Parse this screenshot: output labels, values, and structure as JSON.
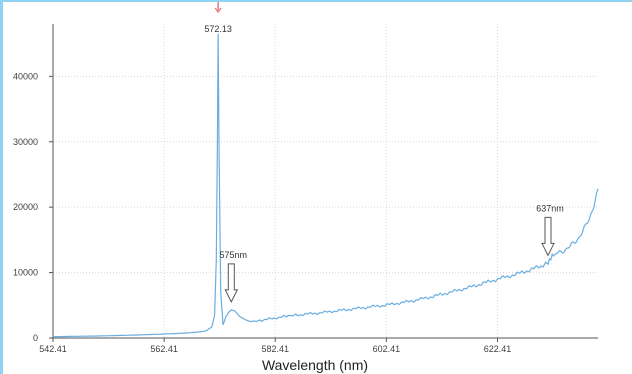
{
  "chart_data": {
    "type": "line",
    "xlabel": "Wavelength (nm)",
    "ylabel": "",
    "xlim": [
      542.41,
      640.5
    ],
    "ylim": [
      0,
      48000
    ],
    "grid": true,
    "x_ticks": [
      542.41,
      562.41,
      582.41,
      602.41,
      622.41
    ],
    "x_tick_labels": [
      "542.41",
      "562.41",
      "582.41",
      "602.41",
      "622.41"
    ],
    "y_ticks": [
      0,
      10000,
      20000,
      30000,
      40000
    ],
    "y_tick_labels": [
      "0",
      "10000",
      "20000",
      "30000",
      "40000"
    ],
    "line_color": "#6aaee0",
    "peak_marker_color": "#e07a7a",
    "arrow_color": "#555555",
    "series": [
      {
        "x": [
          542.41,
          546,
          550,
          554,
          558,
          562,
          565,
          567,
          569,
          570,
          571,
          571.5,
          571.8,
          572.0,
          572.13,
          572.3,
          572.6,
          573.0,
          573.5,
          574.0,
          574.5,
          575.0,
          575.5,
          576.0,
          577.0,
          578.0,
          580.0,
          584.0,
          586.0,
          590.0,
          594.0,
          598.0,
          602.0,
          606.0,
          610.0,
          614.0,
          618.0,
          622.0,
          626.0,
          630.0,
          631.5,
          632.0,
          632.5,
          633.0,
          634.0,
          635.0,
          636.0,
          637.0,
          638.0,
          639.0,
          640.0,
          640.5
        ],
        "y": [
          200,
          250,
          300,
          380,
          470,
          600,
          700,
          800,
          950,
          1100,
          1700,
          3500,
          12000,
          30000,
          46500,
          28000,
          7000,
          2000,
          3200,
          3900,
          4300,
          4200,
          3800,
          3300,
          2800,
          2500,
          2700,
          3300,
          3500,
          3800,
          4200,
          4600,
          5000,
          5500,
          6200,
          7000,
          7900,
          8900,
          9800,
          10900,
          11400,
          12300,
          12700,
          12900,
          13200,
          13700,
          14400,
          15300,
          16600,
          18400,
          21000,
          22800
        ]
      }
    ],
    "annotations": [
      {
        "label": "572.13",
        "x": 572.13,
        "y": 46500,
        "kind": "peak-label"
      },
      {
        "label": "575nm",
        "x": 574.5,
        "y": 4300,
        "kind": "arrow"
      },
      {
        "label": "637nm",
        "x": 631.5,
        "y": 11400,
        "kind": "arrow"
      }
    ]
  }
}
